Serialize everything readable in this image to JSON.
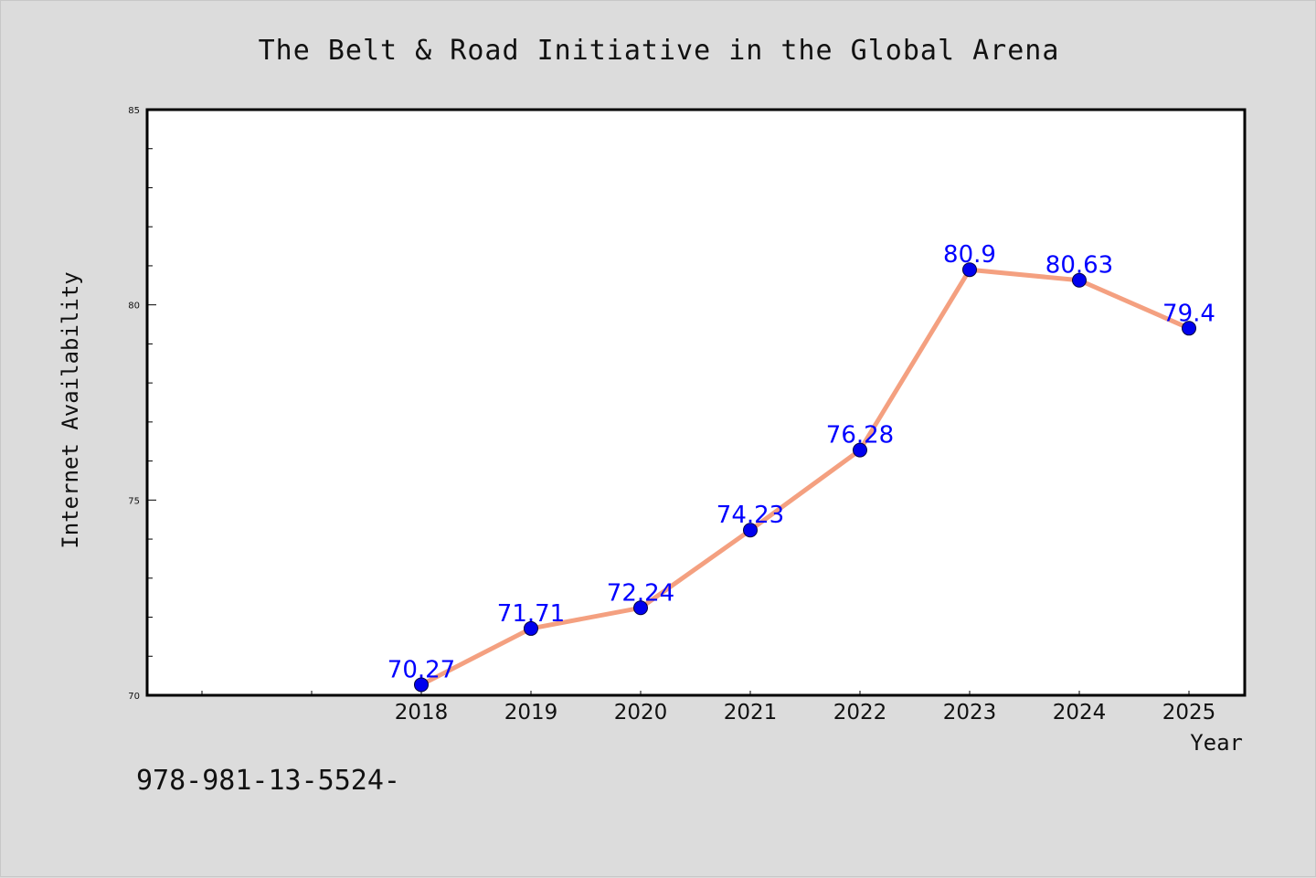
{
  "chart_data": {
    "type": "line",
    "title": "The Belt & Road Initiative in the Global Arena",
    "xlabel": "Year",
    "ylabel": "Internet Availability",
    "categories": [
      "2018",
      "2019",
      "2020",
      "2021",
      "2022",
      "2023",
      "2024",
      "2025"
    ],
    "series": [
      {
        "values": [
          70.27,
          71.71,
          72.24,
          74.23,
          76.28,
          80.9,
          80.63,
          79.4
        ],
        "data_labels": [
          "70.27",
          "71.71",
          "72.24",
          "74.23",
          "76.28",
          "80.9",
          "80.63",
          "79.4"
        ],
        "line_color": "#f4a080",
        "marker_color": "#0000ee",
        "label_color": "#0000ff"
      }
    ],
    "ylim": [
      70,
      85
    ],
    "y_ticks": [
      70,
      75,
      80,
      85
    ],
    "y_tick_labels": [
      "70",
      "75",
      "80",
      "85"
    ],
    "grid": false,
    "legend": "none"
  },
  "footer": {
    "text": "978-981-13-5524-"
  },
  "colors": {
    "background": "#dcdcdc",
    "plot_background": "#ffffff",
    "axis": "#000000"
  }
}
